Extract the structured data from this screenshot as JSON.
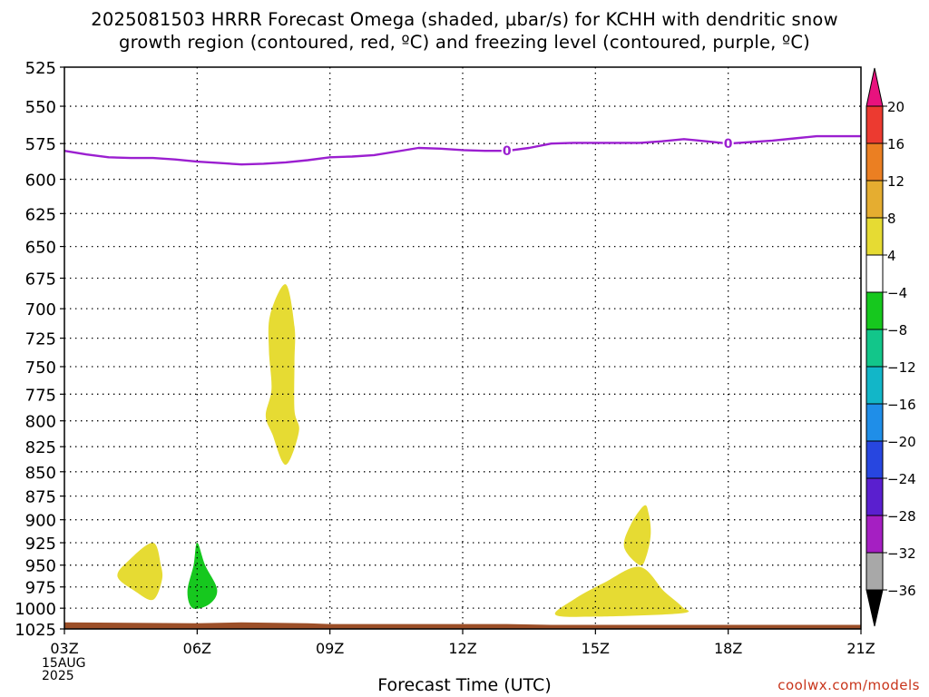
{
  "title_line1": "2025081503 HRRR Forecast Omega (shaded, µbar/s) for KCHH with dendritic snow",
  "title_line2": "growth region (contoured, red, ºC) and freezing level (contoured, purple, ºC)",
  "watermark": "coolwx.com/models",
  "chart_data": {
    "type": "heatmap",
    "title": "2025081503 HRRR Forecast Omega (shaded, µbar/s) for KCHH with dendritic snow growth region (contoured, red, ºC) and freezing level (contoured, purple, ºC)",
    "xlabel": "Forecast Time (UTC)",
    "x_ticks": [
      "03Z",
      "06Z",
      "09Z",
      "12Z",
      "15Z",
      "18Z",
      "21Z"
    ],
    "x_tick_hours": [
      3,
      6,
      9,
      12,
      15,
      18,
      21
    ],
    "x_date_lines": [
      "15AUG",
      "2025"
    ],
    "xlim": [
      3,
      21
    ],
    "ylabel": "",
    "y_ticks": [
      525,
      550,
      575,
      600,
      625,
      650,
      675,
      700,
      725,
      750,
      775,
      800,
      825,
      850,
      875,
      900,
      925,
      950,
      975,
      1000,
      1025
    ],
    "ylim": [
      525,
      1025
    ],
    "y_log_pressure": true,
    "grid": true,
    "colorbar": {
      "labels": [
        "20",
        "16",
        "12",
        "8",
        "4",
        "-4",
        "-8",
        "-12",
        "-16",
        "-20",
        "-24",
        "-28",
        "-32",
        "-36"
      ],
      "bands": [
        {
          "range": [
            16,
            20
          ],
          "color": "#ec3a30"
        },
        {
          "range": [
            12,
            16
          ],
          "color": "#eb7f22"
        },
        {
          "range": [
            8,
            12
          ],
          "color": "#e5ad30"
        },
        {
          "range": [
            4,
            8
          ],
          "color": "#e6db33"
        },
        {
          "range": [
            -4,
            4
          ],
          "color": "#ffffff"
        },
        {
          "range": [
            -8,
            -4
          ],
          "color": "#16c81e"
        },
        {
          "range": [
            -12,
            -8
          ],
          "color": "#12c68a"
        },
        {
          "range": [
            -16,
            -12
          ],
          "color": "#12b6c8"
        },
        {
          "range": [
            -20,
            -16
          ],
          "color": "#1f8ee8"
        },
        {
          "range": [
            -24,
            -20
          ],
          "color": "#2746e0"
        },
        {
          "range": [
            -28,
            -24
          ],
          "color": "#5a1fcf"
        },
        {
          "range": [
            -32,
            -28
          ],
          "color": "#a51fc2"
        },
        {
          "range": [
            -36,
            -32
          ],
          "color": "#a8a8a8"
        }
      ],
      "top_arrow_color": "#e8127e",
      "bottom_arrow_color": "#000000"
    },
    "freezing_level": {
      "label": "0",
      "color": "#9b1fd0",
      "x": [
        3,
        3.5,
        4,
        4.5,
        5,
        5.5,
        6,
        6.5,
        7,
        7.5,
        8,
        8.5,
        9,
        9.5,
        10,
        10.5,
        11,
        11.5,
        12,
        12.5,
        13,
        13.5,
        14,
        14.5,
        15,
        15.5,
        16,
        16.5,
        17,
        17.5,
        18,
        18.5,
        19,
        19.5,
        20,
        20.5,
        21
      ],
      "y": [
        580,
        582.5,
        584.5,
        585,
        585,
        586,
        587.5,
        588.5,
        589.5,
        589,
        588,
        586.5,
        584.5,
        584,
        583,
        580.5,
        578,
        578.5,
        579.5,
        580,
        580,
        578,
        575,
        574.5,
        574.5,
        574.5,
        574.5,
        573.5,
        572,
        573.5,
        575,
        574,
        573,
        571.5,
        570,
        570,
        570
      ]
    },
    "shaded_regions": [
      {
        "value_range": [
          4,
          8
        ],
        "points": [
          [
            5.0,
            925
          ],
          [
            5.18,
            950
          ],
          [
            5.2,
            968
          ],
          [
            5.0,
            990
          ],
          [
            4.6,
            980
          ],
          [
            4.2,
            963
          ],
          [
            4.45,
            945
          ]
        ]
      },
      {
        "value_range": [
          -8,
          -4
        ],
        "points": [
          [
            6.0,
            925
          ],
          [
            6.18,
            950
          ],
          [
            6.45,
            978
          ],
          [
            6.28,
            995
          ],
          [
            5.9,
            1000
          ],
          [
            5.78,
            980
          ],
          [
            5.92,
            950
          ]
        ]
      },
      {
        "value_range": [
          4,
          8
        ],
        "points": [
          [
            8.0,
            680
          ],
          [
            8.2,
            715
          ],
          [
            8.2,
            745
          ],
          [
            8.2,
            790
          ],
          [
            8.3,
            810
          ],
          [
            8.0,
            843
          ],
          [
            7.7,
            813
          ],
          [
            7.55,
            795
          ],
          [
            7.68,
            770
          ],
          [
            7.62,
            735
          ],
          [
            7.65,
            705
          ]
        ]
      },
      {
        "value_range": [
          4,
          8
        ],
        "points": [
          [
            16.1,
            885
          ],
          [
            16.2,
            893
          ],
          [
            16.25,
            915
          ],
          [
            16.15,
            940
          ],
          [
            16.0,
            950
          ],
          [
            15.65,
            930
          ],
          [
            15.8,
            905
          ]
        ]
      },
      {
        "value_range": [
          4,
          8
        ],
        "points": [
          [
            16.0,
            952
          ],
          [
            16.55,
            980
          ],
          [
            16.95,
            998
          ],
          [
            16.95,
            1006
          ],
          [
            15.0,
            1010
          ],
          [
            14.1,
            1008
          ],
          [
            14.5,
            990
          ],
          [
            15.2,
            970
          ]
        ]
      }
    ],
    "terrain": {
      "color": "#9c4f28",
      "x": [
        3,
        6,
        7,
        8.5,
        9,
        13,
        14,
        21
      ],
      "y": [
        1017,
        1018,
        1017,
        1018,
        1019,
        1019,
        1020,
        1020
      ]
    }
  }
}
